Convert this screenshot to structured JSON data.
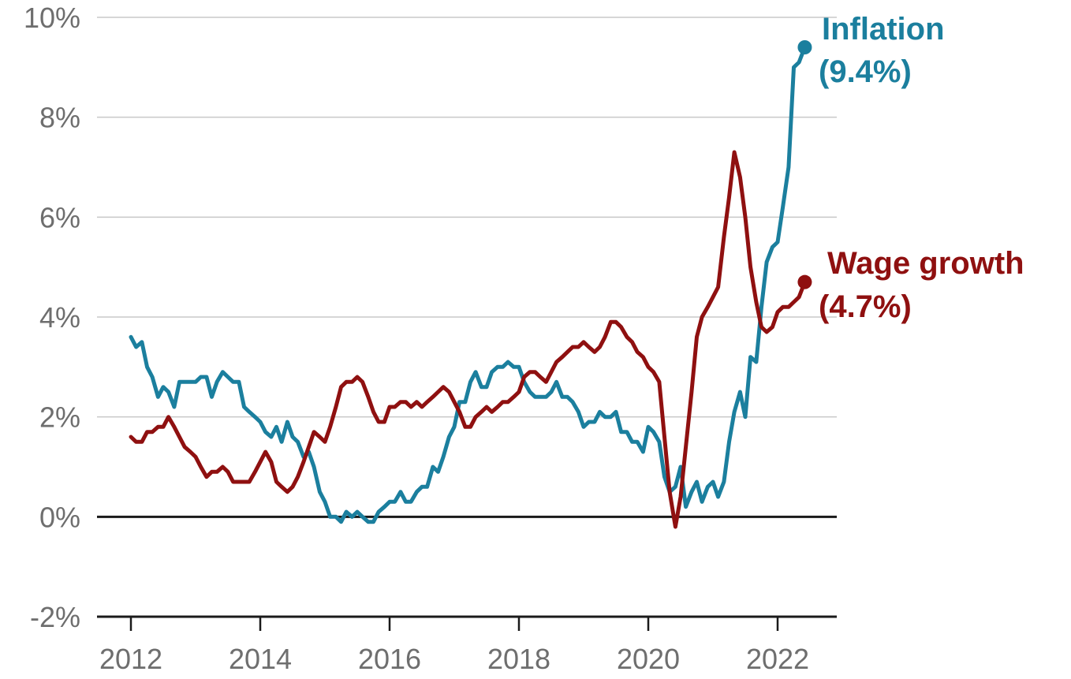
{
  "chart_data": {
    "type": "line",
    "title": "",
    "xlabel": "",
    "ylabel": "",
    "xlim": [
      2012,
      2023
    ],
    "ylim": [
      -2,
      10
    ],
    "grid": true,
    "y_ticks": [
      {
        "value": -2,
        "label": "-2%"
      },
      {
        "value": 0,
        "label": "0%"
      },
      {
        "value": 2,
        "label": "2%"
      },
      {
        "value": 4,
        "label": "4%"
      },
      {
        "value": 6,
        "label": "6%"
      },
      {
        "value": 8,
        "label": "8%"
      },
      {
        "value": 10,
        "label": "10%"
      }
    ],
    "x_ticks": [
      {
        "value": 2012,
        "label": "2012"
      },
      {
        "value": 2014,
        "label": "2014"
      },
      {
        "value": 2016,
        "label": "2016"
      },
      {
        "value": 2018,
        "label": "2018"
      },
      {
        "value": 2020,
        "label": "2020"
      },
      {
        "value": 2022,
        "label": "2022"
      }
    ],
    "series": [
      {
        "key": "inflation",
        "name": "Inflation",
        "end_label": "(9.4%)",
        "color": "#1b7f9e",
        "points": [
          [
            2012.0,
            3.6
          ],
          [
            2012.08,
            3.4
          ],
          [
            2012.17,
            3.5
          ],
          [
            2012.25,
            3.0
          ],
          [
            2012.33,
            2.8
          ],
          [
            2012.42,
            2.4
          ],
          [
            2012.5,
            2.6
          ],
          [
            2012.58,
            2.5
          ],
          [
            2012.67,
            2.2
          ],
          [
            2012.75,
            2.7
          ],
          [
            2012.83,
            2.7
          ],
          [
            2012.92,
            2.7
          ],
          [
            2013.0,
            2.7
          ],
          [
            2013.08,
            2.8
          ],
          [
            2013.17,
            2.8
          ],
          [
            2013.25,
            2.4
          ],
          [
            2013.33,
            2.7
          ],
          [
            2013.42,
            2.9
          ],
          [
            2013.5,
            2.8
          ],
          [
            2013.58,
            2.7
          ],
          [
            2013.67,
            2.7
          ],
          [
            2013.75,
            2.2
          ],
          [
            2013.83,
            2.1
          ],
          [
            2013.92,
            2.0
          ],
          [
            2014.0,
            1.9
          ],
          [
            2014.08,
            1.7
          ],
          [
            2014.17,
            1.6
          ],
          [
            2014.25,
            1.8
          ],
          [
            2014.33,
            1.5
          ],
          [
            2014.42,
            1.9
          ],
          [
            2014.5,
            1.6
          ],
          [
            2014.58,
            1.5
          ],
          [
            2014.67,
            1.2
          ],
          [
            2014.75,
            1.3
          ],
          [
            2014.83,
            1.0
          ],
          [
            2014.92,
            0.5
          ],
          [
            2015.0,
            0.3
          ],
          [
            2015.08,
            0.0
          ],
          [
            2015.17,
            0.0
          ],
          [
            2015.25,
            -0.1
          ],
          [
            2015.33,
            0.1
          ],
          [
            2015.42,
            0.0
          ],
          [
            2015.5,
            0.1
          ],
          [
            2015.58,
            0.0
          ],
          [
            2015.67,
            -0.1
          ],
          [
            2015.75,
            -0.1
          ],
          [
            2015.83,
            0.1
          ],
          [
            2015.92,
            0.2
          ],
          [
            2016.0,
            0.3
          ],
          [
            2016.08,
            0.3
          ],
          [
            2016.17,
            0.5
          ],
          [
            2016.25,
            0.3
          ],
          [
            2016.33,
            0.3
          ],
          [
            2016.42,
            0.5
          ],
          [
            2016.5,
            0.6
          ],
          [
            2016.58,
            0.6
          ],
          [
            2016.67,
            1.0
          ],
          [
            2016.75,
            0.9
          ],
          [
            2016.83,
            1.2
          ],
          [
            2016.92,
            1.6
          ],
          [
            2017.0,
            1.8
          ],
          [
            2017.08,
            2.3
          ],
          [
            2017.17,
            2.3
          ],
          [
            2017.25,
            2.7
          ],
          [
            2017.33,
            2.9
          ],
          [
            2017.42,
            2.6
          ],
          [
            2017.5,
            2.6
          ],
          [
            2017.58,
            2.9
          ],
          [
            2017.67,
            3.0
          ],
          [
            2017.75,
            3.0
          ],
          [
            2017.83,
            3.1
          ],
          [
            2017.92,
            3.0
          ],
          [
            2018.0,
            3.0
          ],
          [
            2018.08,
            2.7
          ],
          [
            2018.17,
            2.5
          ],
          [
            2018.25,
            2.4
          ],
          [
            2018.33,
            2.4
          ],
          [
            2018.42,
            2.4
          ],
          [
            2018.5,
            2.5
          ],
          [
            2018.58,
            2.7
          ],
          [
            2018.67,
            2.4
          ],
          [
            2018.75,
            2.4
          ],
          [
            2018.83,
            2.3
          ],
          [
            2018.92,
            2.1
          ],
          [
            2019.0,
            1.8
          ],
          [
            2019.08,
            1.9
          ],
          [
            2019.17,
            1.9
          ],
          [
            2019.25,
            2.1
          ],
          [
            2019.33,
            2.0
          ],
          [
            2019.42,
            2.0
          ],
          [
            2019.5,
            2.1
          ],
          [
            2019.58,
            1.7
          ],
          [
            2019.67,
            1.7
          ],
          [
            2019.75,
            1.5
          ],
          [
            2019.83,
            1.5
          ],
          [
            2019.92,
            1.3
          ],
          [
            2020.0,
            1.8
          ],
          [
            2020.08,
            1.7
          ],
          [
            2020.17,
            1.5
          ],
          [
            2020.25,
            0.8
          ],
          [
            2020.33,
            0.5
          ],
          [
            2020.42,
            0.6
          ],
          [
            2020.5,
            1.0
          ],
          [
            2020.58,
            0.2
          ],
          [
            2020.67,
            0.5
          ],
          [
            2020.75,
            0.7
          ],
          [
            2020.83,
            0.3
          ],
          [
            2020.92,
            0.6
          ],
          [
            2021.0,
            0.7
          ],
          [
            2021.08,
            0.4
          ],
          [
            2021.17,
            0.7
          ],
          [
            2021.25,
            1.5
          ],
          [
            2021.33,
            2.1
          ],
          [
            2021.42,
            2.5
          ],
          [
            2021.5,
            2.0
          ],
          [
            2021.58,
            3.2
          ],
          [
            2021.67,
            3.1
          ],
          [
            2021.75,
            4.2
          ],
          [
            2021.83,
            5.1
          ],
          [
            2021.92,
            5.4
          ],
          [
            2022.0,
            5.5
          ],
          [
            2022.08,
            6.2
          ],
          [
            2022.17,
            7.0
          ],
          [
            2022.25,
            9.0
          ],
          [
            2022.33,
            9.1
          ],
          [
            2022.42,
            9.4
          ]
        ]
      },
      {
        "key": "wage",
        "name": "Wage growth",
        "end_label": "(4.7%)",
        "color": "#8f1010",
        "points": [
          [
            2012.0,
            1.6
          ],
          [
            2012.08,
            1.5
          ],
          [
            2012.17,
            1.5
          ],
          [
            2012.25,
            1.7
          ],
          [
            2012.33,
            1.7
          ],
          [
            2012.42,
            1.8
          ],
          [
            2012.5,
            1.8
          ],
          [
            2012.58,
            2.0
          ],
          [
            2012.67,
            1.8
          ],
          [
            2012.75,
            1.6
          ],
          [
            2012.83,
            1.4
          ],
          [
            2012.92,
            1.3
          ],
          [
            2013.0,
            1.2
          ],
          [
            2013.08,
            1.0
          ],
          [
            2013.17,
            0.8
          ],
          [
            2013.25,
            0.9
          ],
          [
            2013.33,
            0.9
          ],
          [
            2013.42,
            1.0
          ],
          [
            2013.5,
            0.9
          ],
          [
            2013.58,
            0.7
          ],
          [
            2013.67,
            0.7
          ],
          [
            2013.75,
            0.7
          ],
          [
            2013.83,
            0.7
          ],
          [
            2013.92,
            0.9
          ],
          [
            2014.0,
            1.1
          ],
          [
            2014.08,
            1.3
          ],
          [
            2014.17,
            1.1
          ],
          [
            2014.25,
            0.7
          ],
          [
            2014.33,
            0.6
          ],
          [
            2014.42,
            0.5
          ],
          [
            2014.5,
            0.6
          ],
          [
            2014.58,
            0.8
          ],
          [
            2014.67,
            1.1
          ],
          [
            2014.75,
            1.4
          ],
          [
            2014.83,
            1.7
          ],
          [
            2014.92,
            1.6
          ],
          [
            2015.0,
            1.5
          ],
          [
            2015.08,
            1.8
          ],
          [
            2015.17,
            2.2
          ],
          [
            2015.25,
            2.6
          ],
          [
            2015.33,
            2.7
          ],
          [
            2015.42,
            2.7
          ],
          [
            2015.5,
            2.8
          ],
          [
            2015.58,
            2.7
          ],
          [
            2015.67,
            2.4
          ],
          [
            2015.75,
            2.1
          ],
          [
            2015.83,
            1.9
          ],
          [
            2015.92,
            1.9
          ],
          [
            2016.0,
            2.2
          ],
          [
            2016.08,
            2.2
          ],
          [
            2016.17,
            2.3
          ],
          [
            2016.25,
            2.3
          ],
          [
            2016.33,
            2.2
          ],
          [
            2016.42,
            2.3
          ],
          [
            2016.5,
            2.2
          ],
          [
            2016.58,
            2.3
          ],
          [
            2016.67,
            2.4
          ],
          [
            2016.75,
            2.5
          ],
          [
            2016.83,
            2.6
          ],
          [
            2016.92,
            2.5
          ],
          [
            2017.0,
            2.3
          ],
          [
            2017.08,
            2.1
          ],
          [
            2017.17,
            1.8
          ],
          [
            2017.25,
            1.8
          ],
          [
            2017.33,
            2.0
          ],
          [
            2017.42,
            2.1
          ],
          [
            2017.5,
            2.2
          ],
          [
            2017.58,
            2.1
          ],
          [
            2017.67,
            2.2
          ],
          [
            2017.75,
            2.3
          ],
          [
            2017.83,
            2.3
          ],
          [
            2017.92,
            2.4
          ],
          [
            2018.0,
            2.5
          ],
          [
            2018.08,
            2.8
          ],
          [
            2018.17,
            2.9
          ],
          [
            2018.25,
            2.9
          ],
          [
            2018.33,
            2.8
          ],
          [
            2018.42,
            2.7
          ],
          [
            2018.5,
            2.9
          ],
          [
            2018.58,
            3.1
          ],
          [
            2018.67,
            3.2
          ],
          [
            2018.75,
            3.3
          ],
          [
            2018.83,
            3.4
          ],
          [
            2018.92,
            3.4
          ],
          [
            2019.0,
            3.5
          ],
          [
            2019.08,
            3.4
          ],
          [
            2019.17,
            3.3
          ],
          [
            2019.25,
            3.4
          ],
          [
            2019.33,
            3.6
          ],
          [
            2019.42,
            3.9
          ],
          [
            2019.5,
            3.9
          ],
          [
            2019.58,
            3.8
          ],
          [
            2019.67,
            3.6
          ],
          [
            2019.75,
            3.5
          ],
          [
            2019.83,
            3.3
          ],
          [
            2019.92,
            3.2
          ],
          [
            2020.0,
            3.0
          ],
          [
            2020.08,
            2.9
          ],
          [
            2020.17,
            2.7
          ],
          [
            2020.25,
            1.6
          ],
          [
            2020.33,
            0.5
          ],
          [
            2020.42,
            -0.2
          ],
          [
            2020.5,
            0.4
          ],
          [
            2020.58,
            1.4
          ],
          [
            2020.67,
            2.5
          ],
          [
            2020.75,
            3.6
          ],
          [
            2020.83,
            4.0
          ],
          [
            2020.92,
            4.2
          ],
          [
            2021.0,
            4.4
          ],
          [
            2021.08,
            4.6
          ],
          [
            2021.17,
            5.6
          ],
          [
            2021.25,
            6.4
          ],
          [
            2021.33,
            7.3
          ],
          [
            2021.42,
            6.8
          ],
          [
            2021.5,
            6.0
          ],
          [
            2021.58,
            5.0
          ],
          [
            2021.67,
            4.3
          ],
          [
            2021.75,
            3.8
          ],
          [
            2021.83,
            3.7
          ],
          [
            2021.92,
            3.8
          ],
          [
            2022.0,
            4.1
          ],
          [
            2022.08,
            4.2
          ],
          [
            2022.17,
            4.2
          ],
          [
            2022.25,
            4.3
          ],
          [
            2022.33,
            4.4
          ],
          [
            2022.42,
            4.7
          ]
        ]
      }
    ]
  }
}
